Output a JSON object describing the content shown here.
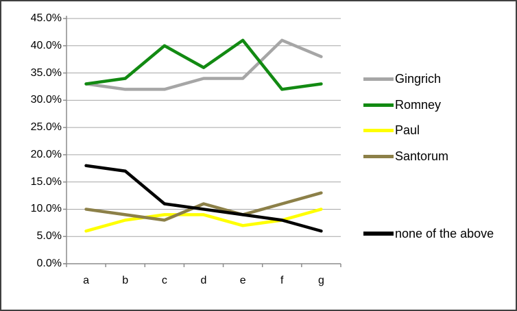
{
  "chart_data": {
    "type": "line",
    "title": "",
    "categories": [
      "a",
      "b",
      "c",
      "d",
      "e",
      "f",
      "g"
    ],
    "series": [
      {
        "name": "Gingrich",
        "color": "#A6A6A6",
        "values": [
          33,
          32,
          32,
          34,
          34,
          41,
          38
        ]
      },
      {
        "name": "Romney",
        "color": "#128A12",
        "values": [
          33,
          34,
          40,
          36,
          41,
          32,
          33
        ]
      },
      {
        "name": "Paul",
        "color": "#FFFF00",
        "values": [
          6,
          8,
          9,
          9,
          7,
          8,
          10
        ]
      },
      {
        "name": "Santorum",
        "color": "#8C8048",
        "values": [
          10,
          9,
          8,
          11,
          9,
          11,
          13
        ]
      },
      {
        "name": "none of the above",
        "color": "#000000",
        "values": [
          18,
          17,
          11,
          10,
          9,
          8,
          6
        ]
      }
    ],
    "y_axis": {
      "min": 0,
      "max": 45,
      "step": 5,
      "tick_labels": [
        "0.0%",
        "5.0%",
        "10.0%",
        "15.0%",
        "20.0%",
        "25.0%",
        "30.0%",
        "35.0%",
        "40.0%",
        "45.0%"
      ]
    },
    "x_axis": {
      "tick_labels": [
        "a",
        "b",
        "c",
        "d",
        "e",
        "f",
        "g"
      ]
    },
    "grid": true,
    "legend_position": "right"
  },
  "colors": {
    "background": "#FFFFFF",
    "border": "#404040",
    "gridline": "#A6A6A6",
    "axis": "#8C8C8C",
    "text": "#000000"
  }
}
